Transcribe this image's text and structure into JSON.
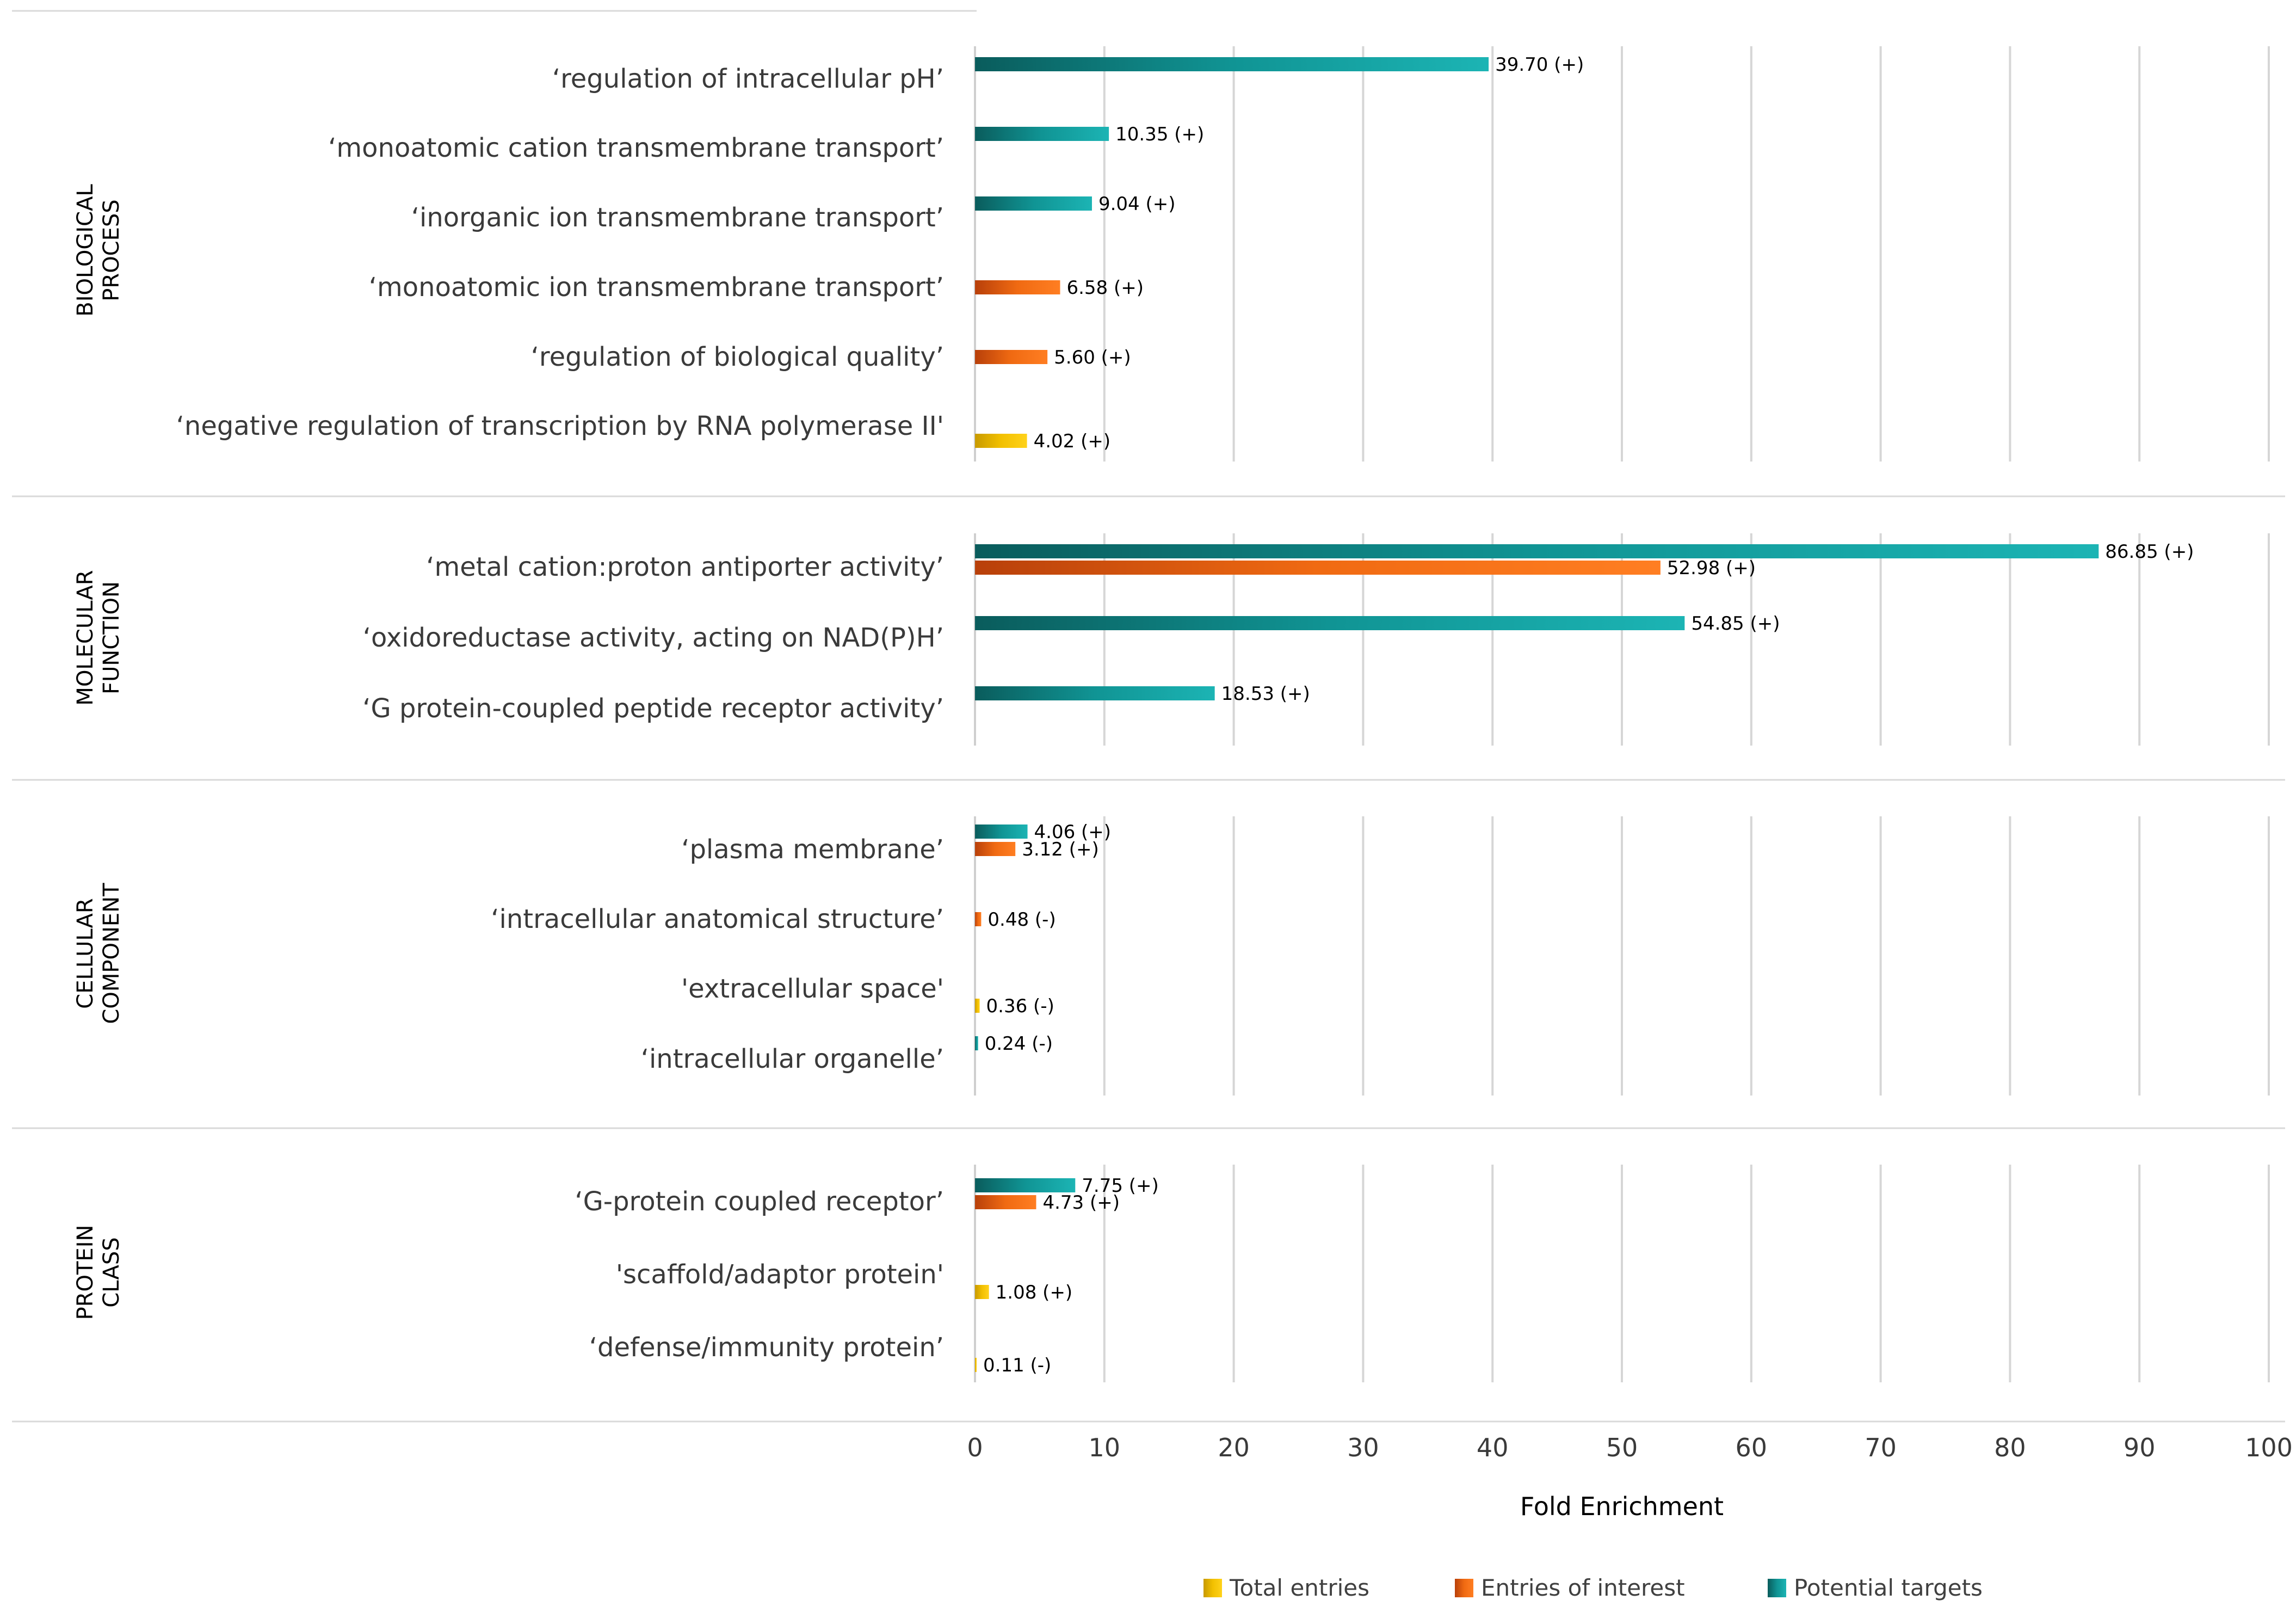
{
  "chart_data": {
    "type": "bar",
    "orientation": "horizontal",
    "xlabel": "Fold Enrichment",
    "xlim": [
      0,
      100
    ],
    "xticks": [
      "0",
      "10",
      "20",
      "30",
      "40",
      "50",
      "60",
      "70",
      "80",
      "90",
      "100"
    ],
    "legend": [
      {
        "name": "Total entries",
        "color": "#f5c000"
      },
      {
        "name": "Entries of interest",
        "color": "#ff7a1a"
      },
      {
        "name": "Potential targets",
        "color": "#14a8a8"
      }
    ],
    "sections": [
      {
        "name": "BIOLOGICAL PROCESS",
        "label_lines": [
          "BIOLOGICAL",
          "PROCESS"
        ],
        "categories": [
          {
            "label": "‘regulation of intracellular pH’",
            "bars": [
              {
                "series": "Potential targets",
                "value": 39.7,
                "text": "39.70 (+)"
              }
            ]
          },
          {
            "label": "‘monoatomic cation transmembrane transport’",
            "bars": [
              {
                "series": "Potential targets",
                "value": 10.35,
                "text": "10.35 (+)"
              }
            ]
          },
          {
            "label": "‘inorganic ion transmembrane transport’",
            "bars": [
              {
                "series": "Potential targets",
                "value": 9.04,
                "text": "9.04 (+)"
              }
            ]
          },
          {
            "label": "‘monoatomic ion transmembrane transport’",
            "bars": [
              {
                "series": "Entries of interest",
                "value": 6.58,
                "text": "6.58 (+)"
              }
            ]
          },
          {
            "label": "‘regulation of biological quality’",
            "bars": [
              {
                "series": "Entries of interest",
                "value": 5.6,
                "text": "5.60 (+)"
              }
            ]
          },
          {
            "label": "‘negative regulation of transcription by RNA polymerase II'",
            "bars": [
              {
                "series": "Total entries",
                "value": 4.02,
                "text": "4.02 (+)"
              }
            ]
          }
        ]
      },
      {
        "name": "MOLECULAR FUNCTION",
        "label_lines": [
          "MOLECULAR",
          "FUNCTION"
        ],
        "categories": [
          {
            "label": "‘metal cation:proton antiporter activity’",
            "bars": [
              {
                "series": "Potential targets",
                "value": 86.85,
                "text": "86.85 (+)"
              },
              {
                "series": "Entries of interest",
                "value": 52.98,
                "text": "52.98 (+)"
              }
            ]
          },
          {
            "label": "‘oxidoreductase activity, acting on NAD(P)H’",
            "bars": [
              {
                "series": "Potential targets",
                "value": 54.85,
                "text": "54.85 (+)"
              }
            ]
          },
          {
            "label": "‘G protein-coupled peptide receptor activity’",
            "bars": [
              {
                "series": "Potential targets",
                "value": 18.53,
                "text": "18.53 (+)"
              }
            ]
          }
        ]
      },
      {
        "name": "CELLULAR COMPONENT",
        "label_lines": [
          "CELLULAR",
          "COMPONENT"
        ],
        "categories": [
          {
            "label": "‘plasma membrane’",
            "bars": [
              {
                "series": "Potential targets",
                "value": 4.06,
                "text": "4.06 (+)"
              },
              {
                "series": "Entries of interest",
                "value": 3.12,
                "text": "3.12 (+)"
              }
            ]
          },
          {
            "label": "‘intracellular anatomical structure’",
            "bars": [
              {
                "series": "Entries of interest",
                "value": 0.48,
                "text": "0.48 (-)"
              }
            ]
          },
          {
            "label": "'extracellular space'",
            "bars": [
              {
                "series": "Total entries",
                "value": 0.36,
                "text": "0.36 (-)"
              }
            ]
          },
          {
            "label": "‘intracellular organelle’",
            "bars": [
              {
                "series": "Potential targets",
                "value": 0.24,
                "text": "0.24 (-)"
              }
            ]
          }
        ]
      },
      {
        "name": "PROTEIN CLASS",
        "label_lines": [
          "PROTEIN",
          "CLASS"
        ],
        "categories": [
          {
            "label": "‘G-protein coupled receptor’",
            "bars": [
              {
                "series": "Potential targets",
                "value": 7.75,
                "text": "7.75 (+)"
              },
              {
                "series": "Entries of interest",
                "value": 4.73,
                "text": "4.73 (+)"
              }
            ]
          },
          {
            "label": "'scaffold/adaptor protein'",
            "bars": [
              {
                "series": "Total entries",
                "value": 1.08,
                "text": "1.08 (+)"
              }
            ]
          },
          {
            "label": "‘defense/immunity protein’",
            "bars": [
              {
                "series": "Total entries",
                "value": 0.11,
                "text": "0.11 (-)"
              }
            ]
          }
        ]
      }
    ]
  }
}
